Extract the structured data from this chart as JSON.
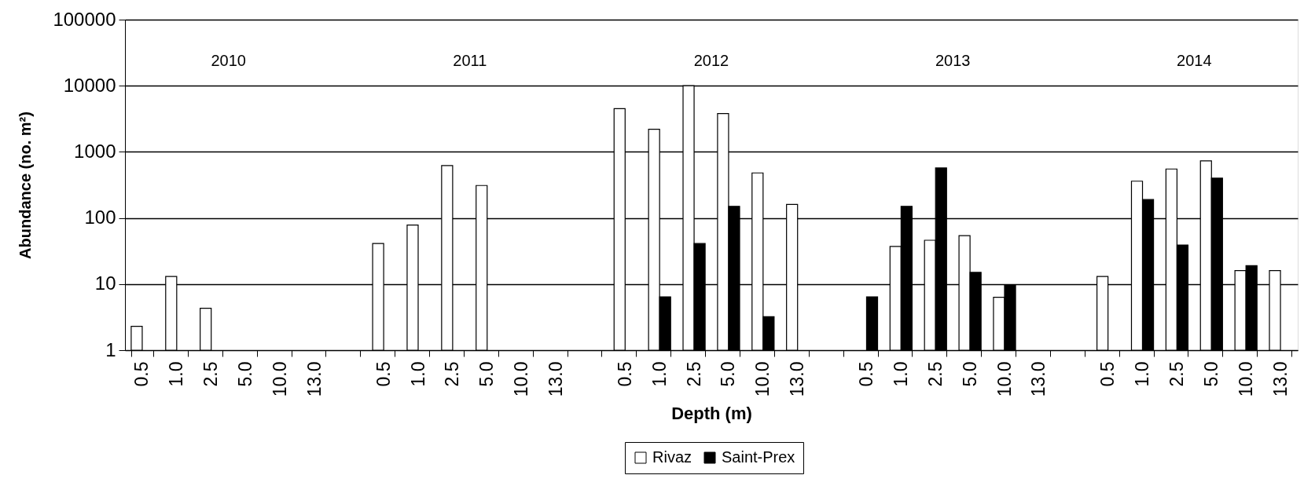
{
  "chart_data": {
    "type": "bar",
    "xlabel": "Depth (m)",
    "ylabel": "Abundance (no. m²)",
    "annotations": [
      "2010",
      "2011",
      "2012",
      "2013",
      "2014"
    ],
    "categories": [
      "0.5",
      "1.0",
      "2.5",
      "5.0",
      "10.0",
      "13.0",
      null,
      "0.5",
      "1.0",
      "2.5",
      "5.0",
      "10.0",
      "13.0",
      null,
      "0.5",
      "1.0",
      "2.5",
      "5.0",
      "10.0",
      "13.0",
      null,
      "0.5",
      "1.0",
      "2.5",
      "5.0",
      "10.0",
      "13.0",
      null,
      "0.5",
      "1.0",
      "2.5",
      "5.0",
      "10.0",
      "13.0"
    ],
    "series": [
      {
        "name": "Rivaz",
        "color": "#ffffff",
        "values": [
          2.3,
          13,
          4.3,
          null,
          null,
          null,
          null,
          41,
          78,
          620,
          310,
          null,
          null,
          null,
          4500,
          2200,
          10000,
          3800,
          480,
          160,
          null,
          null,
          37,
          46,
          54,
          6.3,
          null,
          null,
          13,
          360,
          550,
          730,
          16,
          16
        ]
      },
      {
        "name": "Saint-Prex",
        "color": "#000000",
        "values": [
          null,
          null,
          null,
          null,
          null,
          null,
          null,
          null,
          null,
          null,
          null,
          null,
          null,
          null,
          null,
          6.4,
          41,
          150,
          3.2,
          null,
          null,
          6.4,
          150,
          570,
          15,
          9.6,
          null,
          null,
          null,
          190,
          39,
          400,
          19,
          null
        ]
      }
    ],
    "ylim": [
      1,
      100000
    ],
    "yticks": [
      1,
      10,
      100,
      1000,
      10000,
      100000
    ],
    "log": true,
    "grid": "y",
    "legend": "bottom"
  }
}
